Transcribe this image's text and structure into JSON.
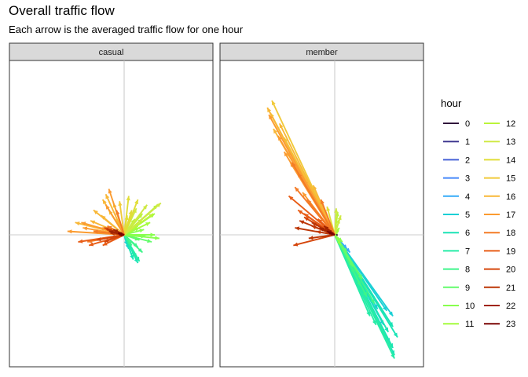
{
  "chart_data": {
    "type": "arrow-field",
    "title": "Overall traffic flow",
    "subtitle": "Each arrow is the averaged traffic flow for one hour",
    "facets": [
      "casual",
      "member"
    ],
    "legend": {
      "title": "hour",
      "hours": [
        0,
        1,
        2,
        3,
        4,
        5,
        6,
        7,
        8,
        9,
        10,
        11,
        12,
        13,
        14,
        15,
        16,
        17,
        18,
        19,
        20,
        21,
        22,
        23
      ],
      "colors": [
        "#30123b",
        "#3e378f",
        "#4662d7",
        "#4689fa",
        "#35abf8",
        "#1bd0d5",
        "#1ae4b6",
        "#25eca7",
        "#3ef58a",
        "#62fc6b",
        "#88ff4e",
        "#a4fc3c",
        "#bbf43a",
        "#cfe945",
        "#e1dd37",
        "#f1ca3a",
        "#f8b737",
        "#fb9b30",
        "#f47b26",
        "#e85d17",
        "#d5460c",
        "#bc3605",
        "#a02402",
        "#7a0403"
      ]
    },
    "axes": {
      "x_range": [
        -1,
        1
      ],
      "y_range": [
        -1,
        1
      ],
      "zero_lines": true,
      "tick_labels": false
    },
    "series": [
      {
        "facet": "casual",
        "arrows": [
          {
            "hour": 0,
            "dx": 0.02,
            "dy": 0.01
          },
          {
            "hour": 1,
            "dx": 0.01,
            "dy": 0.0
          },
          {
            "hour": 2,
            "dx": 0.01,
            "dy": 0.0
          },
          {
            "hour": 3,
            "dx": 0.01,
            "dy": 0.0
          },
          {
            "hour": 5,
            "dx": 0.02,
            "dy": -0.06
          },
          {
            "hour": 5,
            "dx": 0.03,
            "dy": -0.08
          },
          {
            "hour": 6,
            "dx": 0.07,
            "dy": -0.12
          },
          {
            "hour": 6,
            "dx": 0.06,
            "dy": -0.14
          },
          {
            "hour": 6,
            "dx": 0.09,
            "dy": -0.16
          },
          {
            "hour": 7,
            "dx": 0.08,
            "dy": -0.13
          },
          {
            "hour": 7,
            "dx": 0.1,
            "dy": -0.15
          },
          {
            "hour": 8,
            "dx": 0.05,
            "dy": -0.06
          },
          {
            "hour": 8,
            "dx": 0.09,
            "dy": -0.07
          },
          {
            "hour": 8,
            "dx": 0.12,
            "dy": -0.1
          },
          {
            "hour": 9,
            "dx": 0.1,
            "dy": -0.03
          },
          {
            "hour": 9,
            "dx": 0.14,
            "dy": -0.01
          },
          {
            "hour": 9,
            "dx": 0.18,
            "dy": -0.04
          },
          {
            "hour": 10,
            "dx": 0.2,
            "dy": 0.0
          },
          {
            "hour": 10,
            "dx": 0.23,
            "dy": -0.02
          },
          {
            "hour": 10,
            "dx": 0.13,
            "dy": 0.03
          },
          {
            "hour": 10,
            "dx": 0.1,
            "dy": 0.04
          },
          {
            "hour": 11,
            "dx": 0.12,
            "dy": 0.09
          },
          {
            "hour": 11,
            "dx": 0.2,
            "dy": 0.12
          },
          {
            "hour": 11,
            "dx": 0.17,
            "dy": 0.07
          },
          {
            "hour": 11,
            "dx": 0.09,
            "dy": 0.05
          },
          {
            "hour": 12,
            "dx": 0.22,
            "dy": 0.17
          },
          {
            "hour": 12,
            "dx": 0.19,
            "dy": 0.12
          },
          {
            "hour": 12,
            "dx": 0.12,
            "dy": 0.12
          },
          {
            "hour": 12,
            "dx": 0.07,
            "dy": 0.09
          },
          {
            "hour": 13,
            "dx": 0.24,
            "dy": 0.18
          },
          {
            "hour": 13,
            "dx": 0.15,
            "dy": 0.17
          },
          {
            "hour": 13,
            "dx": 0.08,
            "dy": 0.15
          },
          {
            "hour": 14,
            "dx": 0.03,
            "dy": 0.22
          },
          {
            "hour": 14,
            "dx": 0.09,
            "dy": 0.2
          },
          {
            "hour": 14,
            "dx": 0.05,
            "dy": 0.14
          },
          {
            "hour": 14,
            "dx": 0.02,
            "dy": 0.11
          },
          {
            "hour": 15,
            "dx": -0.03,
            "dy": 0.19
          },
          {
            "hour": 15,
            "dx": -0.07,
            "dy": 0.18
          },
          {
            "hour": 15,
            "dx": -0.1,
            "dy": 0.14
          },
          {
            "hour": 15,
            "dx": -0.05,
            "dy": 0.09
          },
          {
            "hour": 16,
            "dx": -0.12,
            "dy": 0.23
          },
          {
            "hour": 16,
            "dx": -0.14,
            "dy": 0.2
          },
          {
            "hour": 16,
            "dx": -0.2,
            "dy": 0.14
          },
          {
            "hour": 16,
            "dx": -0.15,
            "dy": 0.11
          },
          {
            "hour": 16,
            "dx": -0.22,
            "dy": 0.08
          },
          {
            "hour": 16,
            "dx": -0.32,
            "dy": 0.07
          },
          {
            "hour": 17,
            "dx": -0.1,
            "dy": 0.26
          },
          {
            "hour": 17,
            "dx": -0.12,
            "dy": 0.17
          },
          {
            "hour": 17,
            "dx": -0.28,
            "dy": 0.07
          },
          {
            "hour": 17,
            "dx": -0.27,
            "dy": 0.04
          },
          {
            "hour": 17,
            "dx": -0.37,
            "dy": 0.02
          },
          {
            "hour": 17,
            "dx": -0.16,
            "dy": 0.04
          },
          {
            "hour": 18,
            "dx": -0.05,
            "dy": 0.14
          },
          {
            "hour": 18,
            "dx": -0.2,
            "dy": 0.02
          },
          {
            "hour": 18,
            "dx": -0.24,
            "dy": -0.04
          },
          {
            "hour": 18,
            "dx": -0.11,
            "dy": 0.05
          },
          {
            "hour": 19,
            "dx": -0.3,
            "dy": -0.04
          },
          {
            "hour": 19,
            "dx": -0.23,
            "dy": -0.06
          },
          {
            "hour": 19,
            "dx": -0.14,
            "dy": -0.06
          },
          {
            "hour": 19,
            "dx": -0.08,
            "dy": 0.02
          },
          {
            "hour": 20,
            "dx": -0.18,
            "dy": -0.03
          },
          {
            "hour": 20,
            "dx": -0.13,
            "dy": -0.04
          },
          {
            "hour": 20,
            "dx": -0.09,
            "dy": -0.02
          },
          {
            "hour": 20,
            "dx": -0.13,
            "dy": 0.04
          },
          {
            "hour": 21,
            "dx": -0.09,
            "dy": 0.01
          },
          {
            "hour": 21,
            "dx": -0.05,
            "dy": 0.01
          },
          {
            "hour": 21,
            "dx": -0.11,
            "dy": 0.03
          },
          {
            "hour": 22,
            "dx": -0.1,
            "dy": 0.02
          },
          {
            "hour": 22,
            "dx": -0.05,
            "dy": 0.01
          },
          {
            "hour": 22,
            "dx": -0.07,
            "dy": 0.03
          },
          {
            "hour": 23,
            "dx": -0.04,
            "dy": 0.01
          },
          {
            "hour": 23,
            "dx": -0.03,
            "dy": 0.0
          }
        ]
      },
      {
        "facet": "member",
        "arrows": [
          {
            "hour": 0,
            "dx": 0.02,
            "dy": 0.0
          },
          {
            "hour": 1,
            "dx": 0.01,
            "dy": 0.0
          },
          {
            "hour": 2,
            "dx": 0.01,
            "dy": 0.0
          },
          {
            "hour": 3,
            "dx": 0.01,
            "dy": 0.0
          },
          {
            "hour": 4,
            "dx": 0.08,
            "dy": -0.08
          },
          {
            "hour": 4,
            "dx": 0.1,
            "dy": -0.1
          },
          {
            "hour": 5,
            "dx": 0.34,
            "dy": -0.43
          },
          {
            "hour": 5,
            "dx": 0.38,
            "dy": -0.46
          },
          {
            "hour": 5,
            "dx": 0.28,
            "dy": -0.42
          },
          {
            "hour": 5,
            "dx": 0.22,
            "dy": -0.35
          },
          {
            "hour": 5,
            "dx": 0.32,
            "dy": -0.51
          },
          {
            "hour": 6,
            "dx": 0.38,
            "dy": -0.52
          },
          {
            "hour": 6,
            "dx": 0.36,
            "dy": -0.61
          },
          {
            "hour": 6,
            "dx": 0.41,
            "dy": -0.58
          },
          {
            "hour": 6,
            "dx": 0.39,
            "dy": -0.68
          },
          {
            "hour": 6,
            "dx": 0.35,
            "dy": -0.55
          },
          {
            "hour": 6,
            "dx": 0.38,
            "dy": -0.64
          },
          {
            "hour": 7,
            "dx": 0.39,
            "dy": -0.7
          },
          {
            "hour": 7,
            "dx": 0.37,
            "dy": -0.64
          },
          {
            "hour": 7,
            "dx": 0.27,
            "dy": -0.51
          },
          {
            "hour": 7,
            "dx": 0.23,
            "dy": -0.46
          },
          {
            "hour": 8,
            "dx": 0.26,
            "dy": -0.39
          },
          {
            "hour": 8,
            "dx": 0.21,
            "dy": -0.35
          },
          {
            "hour": 8,
            "dx": 0.17,
            "dy": -0.29
          },
          {
            "hour": 8,
            "dx": 0.13,
            "dy": -0.22
          },
          {
            "hour": 9,
            "dx": 0.18,
            "dy": -0.25
          },
          {
            "hour": 9,
            "dx": 0.12,
            "dy": -0.18
          },
          {
            "hour": 9,
            "dx": 0.08,
            "dy": -0.1
          },
          {
            "hour": 10,
            "dx": 0.05,
            "dy": -0.04
          },
          {
            "hour": 10,
            "dx": 0.04,
            "dy": -0.06
          },
          {
            "hour": 11,
            "dx": 0.02,
            "dy": 0.02
          },
          {
            "hour": 11,
            "dx": 0.03,
            "dy": 0.04
          },
          {
            "hour": 12,
            "dx": 0.02,
            "dy": 0.13
          },
          {
            "hour": 12,
            "dx": 0.03,
            "dy": 0.09
          },
          {
            "hour": 13,
            "dx": 0.04,
            "dy": 0.11
          },
          {
            "hour": 13,
            "dx": 0.01,
            "dy": 0.15
          },
          {
            "hour": 14,
            "dx": -0.05,
            "dy": 0.16
          },
          {
            "hour": 14,
            "dx": -0.1,
            "dy": 0.17
          },
          {
            "hour": 15,
            "dx": -0.15,
            "dy": 0.26
          },
          {
            "hour": 15,
            "dx": -0.22,
            "dy": 0.35
          },
          {
            "hour": 15,
            "dx": -0.33,
            "dy": 0.55
          },
          {
            "hour": 15,
            "dx": -0.42,
            "dy": 0.69
          },
          {
            "hour": 15,
            "dx": -0.41,
            "dy": 0.76
          },
          {
            "hour": 16,
            "dx": -0.44,
            "dy": 0.72
          },
          {
            "hour": 16,
            "dx": -0.4,
            "dy": 0.6
          },
          {
            "hour": 16,
            "dx": -0.36,
            "dy": 0.63
          },
          {
            "hour": 16,
            "dx": -0.26,
            "dy": 0.41
          },
          {
            "hour": 16,
            "dx": -0.31,
            "dy": 0.47
          },
          {
            "hour": 16,
            "dx": -0.14,
            "dy": 0.28
          },
          {
            "hour": 17,
            "dx": -0.43,
            "dy": 0.68
          },
          {
            "hour": 17,
            "dx": -0.37,
            "dy": 0.56
          },
          {
            "hour": 17,
            "dx": -0.33,
            "dy": 0.47
          },
          {
            "hour": 17,
            "dx": -0.29,
            "dy": 0.41
          },
          {
            "hour": 17,
            "dx": -0.25,
            "dy": 0.38
          },
          {
            "hour": 17,
            "dx": -0.2,
            "dy": 0.31
          },
          {
            "hour": 17,
            "dx": -0.21,
            "dy": 0.24
          },
          {
            "hour": 18,
            "dx": -0.28,
            "dy": 0.41
          },
          {
            "hour": 18,
            "dx": -0.24,
            "dy": 0.35
          },
          {
            "hour": 18,
            "dx": -0.26,
            "dy": 0.27
          },
          {
            "hour": 18,
            "dx": -0.18,
            "dy": 0.2
          },
          {
            "hour": 18,
            "dx": -0.09,
            "dy": 0.2
          },
          {
            "hour": 19,
            "dx": -0.3,
            "dy": 0.22
          },
          {
            "hour": 19,
            "dx": -0.2,
            "dy": 0.12
          },
          {
            "hour": 19,
            "dx": -0.11,
            "dy": 0.09
          },
          {
            "hour": 19,
            "dx": -0.24,
            "dy": 0.14
          },
          {
            "hour": 20,
            "dx": -0.2,
            "dy": 0.1
          },
          {
            "hour": 20,
            "dx": -0.15,
            "dy": 0.05
          },
          {
            "hour": 20,
            "dx": -0.12,
            "dy": 0.02
          },
          {
            "hour": 20,
            "dx": -0.27,
            "dy": -0.06
          },
          {
            "hour": 21,
            "dx": -0.15,
            "dy": 0.07
          },
          {
            "hour": 21,
            "dx": -0.23,
            "dy": 0.08
          },
          {
            "hour": 21,
            "dx": -0.26,
            "dy": 0.04
          },
          {
            "hour": 21,
            "dx": -0.17,
            "dy": -0.02
          },
          {
            "hour": 22,
            "dx": -0.1,
            "dy": 0.04
          },
          {
            "hour": 22,
            "dx": -0.07,
            "dy": 0.05
          },
          {
            "hour": 22,
            "dx": -0.05,
            "dy": 0.03
          },
          {
            "hour": 23,
            "dx": -0.03,
            "dy": 0.01
          },
          {
            "hour": 23,
            "dx": -0.05,
            "dy": 0.02
          }
        ]
      }
    ]
  }
}
